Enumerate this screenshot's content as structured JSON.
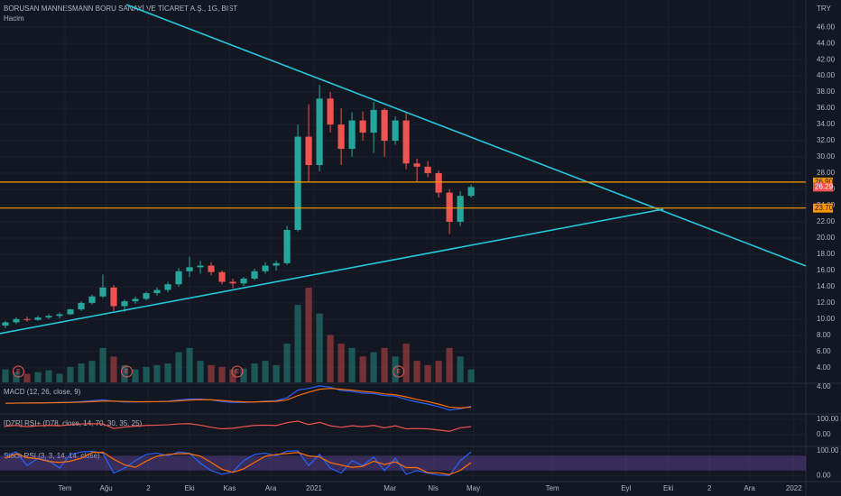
{
  "chart_data": [
    {
      "type": "candlestick",
      "title": "BORUSAN MANNESMANN BORU SANAYİ VE TİCARET A.Ş., 1G, BIST",
      "subtitle": "Hacim",
      "currency": "TRY",
      "x": [
        0.5,
        1.5,
        2.5,
        3.5,
        4.5,
        5.5,
        6.5,
        7.5,
        8.5,
        9.5,
        10.5,
        11.5,
        12.5,
        13.5,
        14.5,
        15.5,
        16.5,
        17.5,
        18.5,
        19.5,
        20.5,
        21.5,
        22.5,
        23.5,
        24.5,
        25.5,
        26.5,
        27.5,
        28.5,
        29.5,
        30.5,
        31.5,
        32.5,
        33.5,
        34.5,
        35.5,
        36.5,
        37.5,
        38.5,
        39.5,
        40.5,
        41.5,
        42.5,
        43.5
      ],
      "open": [
        9.2,
        9.6,
        10.0,
        9.9,
        10.2,
        10.4,
        10.6,
        11.2,
        12.0,
        12.8,
        13.9,
        11.6,
        12.2,
        12.5,
        13.2,
        13.6,
        14.3,
        15.9,
        16.4,
        16.6,
        15.8,
        14.6,
        14.4,
        15.0,
        15.9,
        16.6,
        16.9,
        21.0,
        32.5,
        29.0,
        37.2,
        34.0,
        31.0,
        34.5,
        33.0,
        35.8,
        32.0,
        34.5,
        29.2,
        28.8,
        28.0,
        25.6,
        22.0,
        25.2
      ],
      "high": [
        9.8,
        10.2,
        10.3,
        10.4,
        10.6,
        10.8,
        11.3,
        12.2,
        13.0,
        15.5,
        14.2,
        12.4,
        12.8,
        13.4,
        13.9,
        14.6,
        16.3,
        17.7,
        17.2,
        17.0,
        16.0,
        15.0,
        15.2,
        16.2,
        17.0,
        17.2,
        21.5,
        34.0,
        36.5,
        38.9,
        38.0,
        36.0,
        35.5,
        35.6,
        36.8,
        36.0,
        35.0,
        35.5,
        29.8,
        29.5,
        28.3,
        26.0,
        25.8,
        26.6
      ],
      "low": [
        8.9,
        9.4,
        9.7,
        9.8,
        10.0,
        10.1,
        10.5,
        11.0,
        11.8,
        12.6,
        11.0,
        10.9,
        11.9,
        12.3,
        12.9,
        13.3,
        14.0,
        15.2,
        15.6,
        15.4,
        14.3,
        13.8,
        14.1,
        14.8,
        15.6,
        16.0,
        16.7,
        20.8,
        27.0,
        28.2,
        33.0,
        29.0,
        30.0,
        32.0,
        30.5,
        30.0,
        31.5,
        28.5,
        27.0,
        27.5,
        25.0,
        20.5,
        21.5,
        25.0
      ],
      "close": [
        9.6,
        10.0,
        9.9,
        10.2,
        10.4,
        10.6,
        11.2,
        12.0,
        12.8,
        13.9,
        11.6,
        12.2,
        12.5,
        13.2,
        13.6,
        14.3,
        15.9,
        16.4,
        16.6,
        15.8,
        14.6,
        14.4,
        15.0,
        15.9,
        16.6,
        16.9,
        21.0,
        32.5,
        29.0,
        37.2,
        34.0,
        31.0,
        34.5,
        33.0,
        35.8,
        32.0,
        34.5,
        29.2,
        28.8,
        28.0,
        25.6,
        22.0,
        25.2,
        26.29
      ],
      "volume": [
        15,
        12,
        10,
        12,
        14,
        10,
        18,
        22,
        25,
        40,
        30,
        20,
        15,
        18,
        20,
        22,
        35,
        40,
        25,
        20,
        18,
        15,
        16,
        22,
        25,
        20,
        45,
        90,
        110,
        80,
        55,
        45,
        40,
        30,
        35,
        40,
        30,
        45,
        25,
        20,
        25,
        40,
        30,
        15
      ],
      "up_color": "#26a69a",
      "down_color": "#ef5350",
      "xlim": [
        0,
        74.4
      ],
      "xticks": [
        {
          "value": 6,
          "label": "Tem"
        },
        {
          "value": 9.8,
          "label": "Ağu"
        },
        {
          "value": 13.7,
          "label": "2"
        },
        {
          "value": 17.5,
          "label": "Eki"
        },
        {
          "value": 21.2,
          "label": "Kas"
        },
        {
          "value": 25,
          "label": "Ara"
        },
        {
          "value": 29,
          "label": "2021"
        },
        {
          "value": 36,
          "label": "Mar"
        },
        {
          "value": 40,
          "label": "Nis"
        },
        {
          "value": 43.7,
          "label": "May"
        },
        {
          "value": 51,
          "label": "Tem"
        },
        {
          "value": 57.8,
          "label": "Eyl"
        },
        {
          "value": 61.7,
          "label": "Eki"
        },
        {
          "value": 65.5,
          "label": "2"
        },
        {
          "value": 69.2,
          "label": "Ara"
        },
        {
          "value": 73.3,
          "label": "2022"
        }
      ],
      "ylim": [
        2.2,
        48.8
      ],
      "yticks": [
        {
          "value": 4,
          "label": "4.00"
        },
        {
          "value": 6,
          "label": "6.00"
        },
        {
          "value": 8,
          "label": "8.00"
        },
        {
          "value": 10,
          "label": "10.00"
        },
        {
          "value": 12,
          "label": "12.00"
        },
        {
          "value": 14,
          "label": "14.00"
        },
        {
          "value": 16,
          "label": "16.00"
        },
        {
          "value": 18,
          "label": "18.00"
        },
        {
          "value": 20,
          "label": "20.00"
        },
        {
          "value": 22,
          "label": "22.00"
        },
        {
          "value": 24,
          "label": "24.00"
        },
        {
          "value": 26,
          "label": "26.00"
        },
        {
          "value": 28,
          "label": "28.00"
        },
        {
          "value": 30,
          "label": "30.00"
        },
        {
          "value": 32,
          "label": "32.00"
        },
        {
          "value": 34,
          "label": "34.00"
        },
        {
          "value": 36,
          "label": "36.00"
        },
        {
          "value": 38,
          "label": "38.00"
        },
        {
          "value": 40,
          "label": "40.00"
        },
        {
          "value": 42,
          "label": "42.00"
        },
        {
          "value": 44,
          "label": "44.00"
        },
        {
          "value": 46,
          "label": "46.00"
        }
      ],
      "hlines": [
        {
          "value": 26.9,
          "label": "26.90",
          "color": "#ff9800"
        },
        {
          "value": 23.7,
          "label": "23.70",
          "color": "#ff9800"
        }
      ],
      "price_tag": {
        "value": 26.29,
        "label": "26.29",
        "color": "#ef5350"
      },
      "trendlines": [
        {
          "x": [
            11.67,
            74.4
          ],
          "y": [
            48.78,
            16.56
          ],
          "color": "#26c6da"
        },
        {
          "x": [
            0,
            61.25
          ],
          "y": [
            8.22,
            23.56
          ],
          "color": "#26c6da"
        }
      ],
      "events": {
        "label": "E",
        "x": [
          1.7,
          11.7,
          21.9,
          36.8
        ]
      }
    },
    {
      "type": "line",
      "title": "MACD (12, 26, close, 9)",
      "ylim": [
        -2.2,
        4.6
      ],
      "yticks": [
        {
          "value": 4,
          "label": "4.00"
        }
      ],
      "series": [
        {
          "color": "#2962ff",
          "values": [
            0.1,
            0.15,
            0.2,
            0.2,
            0.25,
            0.3,
            0.35,
            0.5,
            0.7,
            0.9,
            0.6,
            0.4,
            0.4,
            0.45,
            0.5,
            0.6,
            0.9,
            1.1,
            1.1,
            0.9,
            0.5,
            0.3,
            0.3,
            0.4,
            0.6,
            0.7,
            1.4,
            3.2,
            3.6,
            4.2,
            3.9,
            3.1,
            2.9,
            2.5,
            2.4,
            1.9,
            1.8,
            1.0,
            0.4,
            -0.1,
            -0.7,
            -1.5,
            -1.2,
            -0.6
          ]
        },
        {
          "color": "#ff6d00",
          "values": [
            0.1,
            0.12,
            0.15,
            0.17,
            0.2,
            0.24,
            0.28,
            0.36,
            0.48,
            0.62,
            0.61,
            0.52,
            0.46,
            0.45,
            0.47,
            0.52,
            0.67,
            0.84,
            0.95,
            0.93,
            0.75,
            0.55,
            0.43,
            0.41,
            0.48,
            0.57,
            0.9,
            1.9,
            2.7,
            3.4,
            3.6,
            3.4,
            3.2,
            2.9,
            2.7,
            2.3,
            2.1,
            1.6,
            1.0,
            0.5,
            -0.1,
            -0.8,
            -1.0,
            -0.8
          ]
        }
      ]
    },
    {
      "type": "line",
      "title": "[DZR] RSI+ (D78, close, 14, 70, 30, 35, 25)",
      "ylim": [
        -70,
        123
      ],
      "yticks": [
        {
          "value": 100,
          "label": "100.00"
        },
        {
          "value": 0,
          "label": "0.00"
        }
      ],
      "series": [
        {
          "color": "#ef5350",
          "values": [
            55,
            60,
            52,
            58,
            60,
            58,
            64,
            70,
            72,
            70,
            40,
            50,
            55,
            60,
            62,
            64,
            70,
            72,
            62,
            48,
            38,
            42,
            52,
            60,
            62,
            60,
            78,
            88,
            66,
            80,
            58,
            48,
            58,
            52,
            60,
            45,
            58,
            38,
            40,
            38,
            30,
            22,
            45,
            52
          ]
        }
      ]
    },
    {
      "type": "line",
      "title": "Stoch RSI (3, 3, 14, 14, close)",
      "ylim": [
        -20.7,
        110.3
      ],
      "yticks": [
        {
          "value": 100,
          "label": "100.00"
        },
        {
          "value": 0,
          "label": "0.00"
        }
      ],
      "band": [
        20,
        80
      ],
      "band_color": "#7e57c2",
      "series": [
        {
          "color": "#2962ff",
          "values": [
            80,
            95,
            40,
            70,
            60,
            30,
            85,
            95,
            98,
            90,
            10,
            30,
            60,
            85,
            90,
            80,
            95,
            90,
            50,
            20,
            5,
            15,
            60,
            85,
            90,
            80,
            98,
            100,
            40,
            85,
            30,
            10,
            60,
            40,
            75,
            20,
            70,
            5,
            20,
            10,
            2,
            0,
            60,
            95
          ]
        },
        {
          "color": "#ff6d00",
          "values": [
            70,
            88,
            72,
            68,
            57,
            53,
            58,
            70,
            93,
            94,
            66,
            43,
            33,
            58,
            78,
            85,
            88,
            88,
            78,
            53,
            25,
            13,
            27,
            53,
            78,
            85,
            89,
            93,
            79,
            75,
            52,
            42,
            33,
            37,
            58,
            45,
            55,
            32,
            32,
            12,
            11,
            4,
            21,
            52
          ]
        }
      ]
    }
  ]
}
